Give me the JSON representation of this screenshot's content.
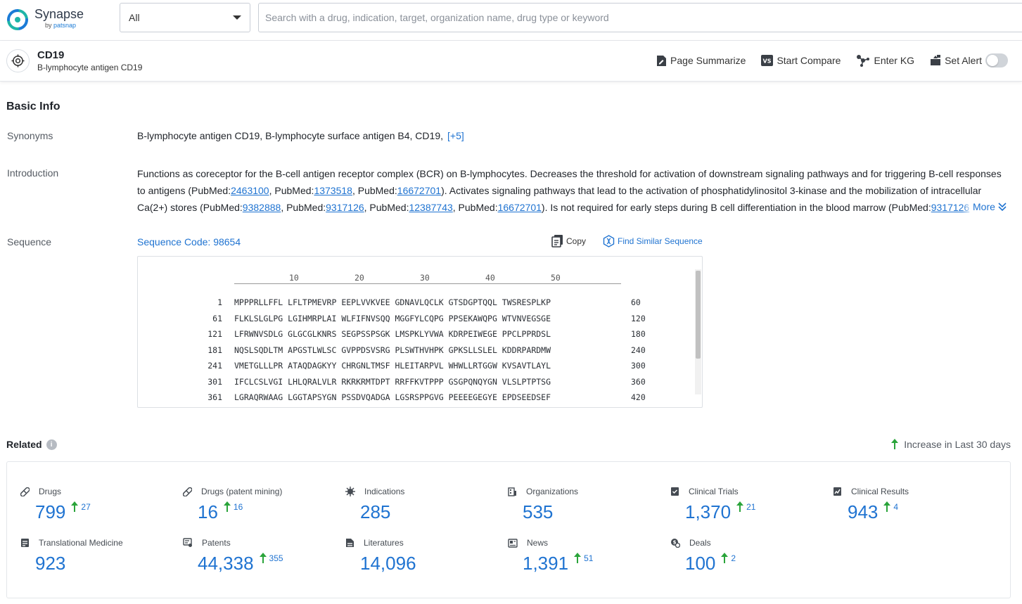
{
  "brand": {
    "name": "Synapse",
    "sub_prefix": "by ",
    "sub_brand": "patsnap"
  },
  "search": {
    "scope": "All",
    "placeholder": "Search with a drug, indication, target, organization name, drug type or keyword"
  },
  "target": {
    "name": "CD19",
    "full_name": "B-lymphocyte antigen CD19"
  },
  "actions": {
    "summarize": "Page Summarize",
    "compare": "Start Compare",
    "kg": "Enter KG",
    "alert": "Set Alert"
  },
  "basic_info": {
    "title": "Basic Info",
    "synonyms_label": "Synonyms",
    "synonyms": "B-lymphocyte antigen CD19,  B-lymphocyte surface antigen B4,  CD19,",
    "synonyms_more": "[+5]",
    "introduction_label": "Introduction",
    "intro": {
      "t1": "Functions as coreceptor for the B-cell antigen receptor complex (BCR) on B-lymphocytes. Decreases the threshold for activation of downstream signaling pathways and for triggering B-cell responses to antigens (PubMed:",
      "p1": "2463100",
      "t2": ", PubMed:",
      "p2": "1373518",
      "t3": ", PubMed:",
      "p3": "16672701",
      "t4": "). Activates signaling pathways that lead to the activation of phosphatidylinositol 3-kinase and the mobilization of intracellular Ca(2+) stores (PubMed:",
      "p4": "9382888",
      "t5": ", PubMed:",
      "p5": "9317126",
      "t6": ", PubMed:",
      "p6": "12387743",
      "t7": ", PubMed:",
      "p7": "16672701",
      "t8": "). Is not required for early steps during B cell differentiation in the blood marrow (PubMed:",
      "p8": "9317126"
    },
    "more_label": "More",
    "sequence_label": "Sequence",
    "sequence_code": "Sequence Code: 98654",
    "copy_label": "Copy",
    "find_label": "Find Similar Sequence"
  },
  "sequence": {
    "ruler": [
      "10",
      "20",
      "30",
      "40",
      "50"
    ],
    "lines": [
      {
        "start": "1",
        "seq": "MPPPRLLFFL LFLTPMEVRP EEPLVVKVEE GDNAVLQCLK GTSDGPTQQL TWSRESPLKP",
        "end": "60"
      },
      {
        "start": "61",
        "seq": "FLKLSLGLPG LGIHMRPLAI WLFIFNVSQQ MGGFYLCQPG PPSEKAWQPG WTVNVEGSGE",
        "end": "120"
      },
      {
        "start": "121",
        "seq": "LFRWNVSDLG GLGCGLKNRS SEGPSSPSGK LMSPKLYVWA KDRPEIWEGE PPCLPPRDSL",
        "end": "180"
      },
      {
        "start": "181",
        "seq": "NQSLSQDLTM APGSTLWLSC GVPPDSVSRG PLSWTHVHPK GPKSLLSLEL KDDRPARDMW",
        "end": "240"
      },
      {
        "start": "241",
        "seq": "VMETGLLLPR ATAQDAGKYY CHRGNLTMSF HLEITARPVL WHWLLRTGGW KVSAVTLAYL",
        "end": "300"
      },
      {
        "start": "301",
        "seq": "IFCLCSLVGI LHLQRALVLR RKRKRMTDPT RRFFKVTPPP GSGPQNQYGN VLSLPTPTSG",
        "end": "360"
      },
      {
        "start": "361",
        "seq": "LGRAQRWAAG LGGTAPSYGN PSSDVQADGA LGSRSPPGVG PEEEEGEGYE EPDSEEDSEF",
        "end": "420"
      }
    ]
  },
  "related": {
    "title": "Related",
    "info": "i",
    "increase_note": "Increase in Last 30 days",
    "stats": [
      {
        "label": "Drugs",
        "value": "799",
        "inc": "27",
        "icon": "pill-icon"
      },
      {
        "label": "Drugs (patent mining)",
        "value": "16",
        "inc": "16",
        "icon": "pill-icon"
      },
      {
        "label": "Indications",
        "value": "285",
        "inc": "",
        "icon": "virus-icon"
      },
      {
        "label": "Organizations",
        "value": "535",
        "inc": "",
        "icon": "building-icon"
      },
      {
        "label": "Clinical Trials",
        "value": "1,370",
        "inc": "21",
        "icon": "clipboard-icon"
      },
      {
        "label": "Clinical Results",
        "value": "943",
        "inc": "4",
        "icon": "chart-doc-icon"
      },
      {
        "label": "Translational Medicine",
        "value": "923",
        "inc": "",
        "icon": "doc-icon"
      },
      {
        "label": "Patents",
        "value": "44,338",
        "inc": "355",
        "icon": "patent-icon"
      },
      {
        "label": "Literatures",
        "value": "14,096",
        "inc": "",
        "icon": "literature-icon"
      },
      {
        "label": "News",
        "value": "1,391",
        "inc": "51",
        "icon": "news-icon"
      },
      {
        "label": "Deals",
        "value": "100",
        "inc": "2",
        "icon": "deal-icon"
      }
    ]
  },
  "colors": {
    "accent": "#1f73d1",
    "increase": "#2aa43a",
    "border": "#e3e6ea"
  }
}
